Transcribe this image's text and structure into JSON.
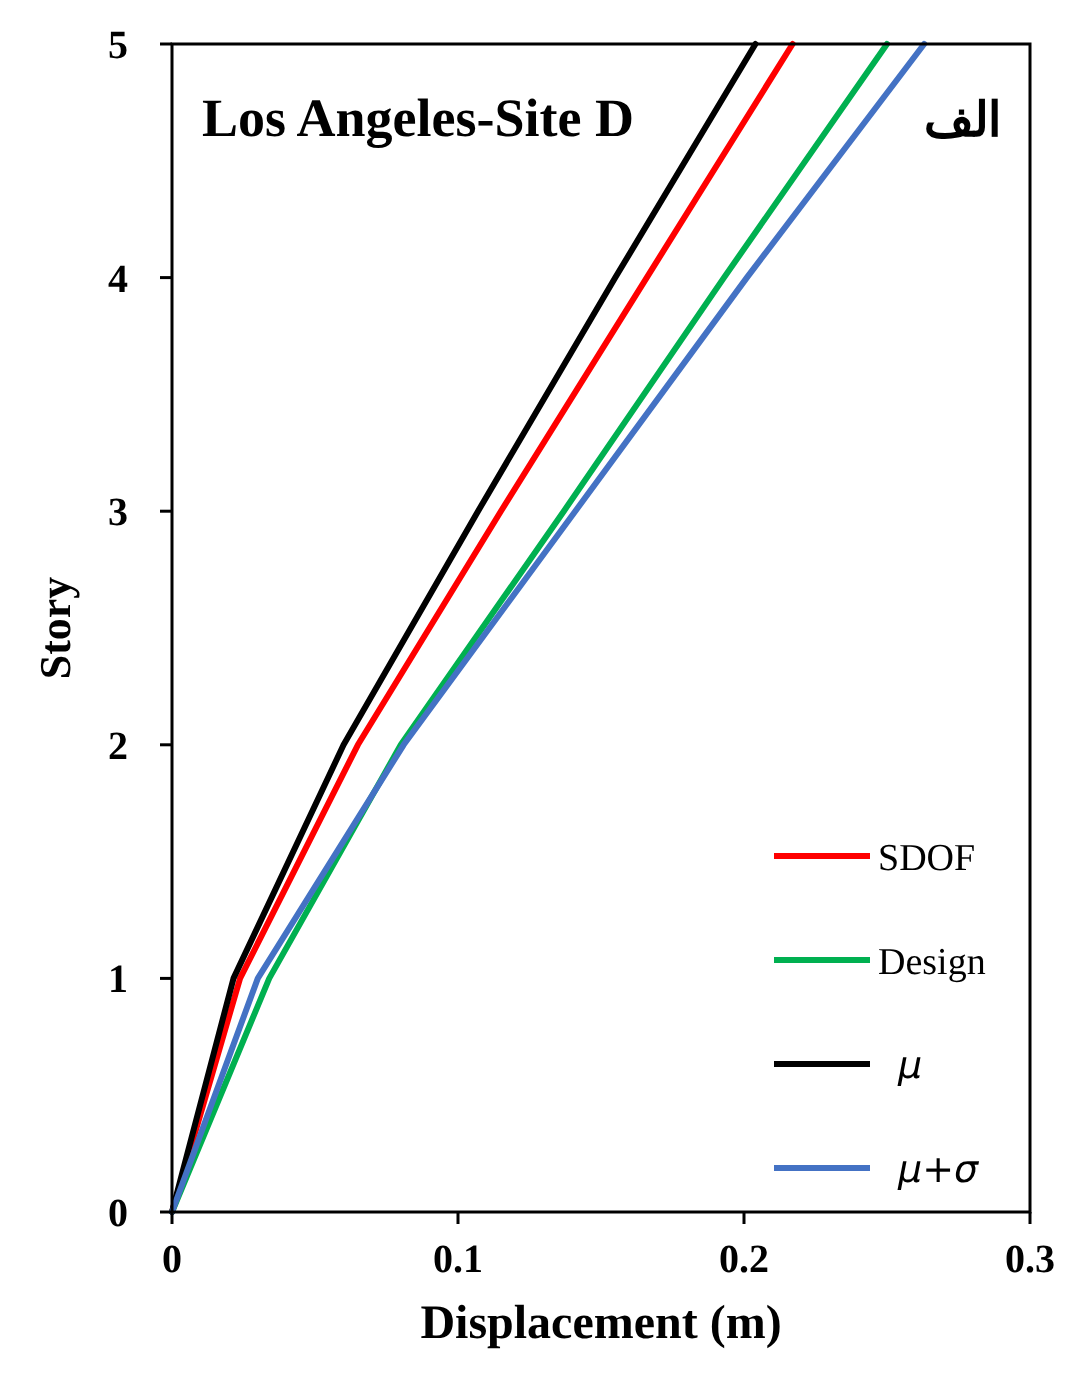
{
  "chart_data": {
    "type": "line",
    "title": "Los Angeles-Site D",
    "annotations": [
      "الف"
    ],
    "xlabel": "Displacement (m)",
    "ylabel": "Story",
    "xlim": [
      0,
      0.3
    ],
    "ylim": [
      0,
      5
    ],
    "xticks": [
      0,
      0.1,
      0.2,
      0.3
    ],
    "yticks": [
      0,
      1,
      2,
      3,
      4,
      5
    ],
    "grid": false,
    "legend": "bottom right",
    "line_style": "solid",
    "series": [
      {
        "name": "SDOF",
        "color": "#ff0000",
        "x": [
          0,
          0.0238,
          0.065,
          0.115,
          0.166,
          0.217
        ],
        "values": [
          0,
          1,
          2,
          3,
          4,
          5
        ]
      },
      {
        "name": "Design",
        "color": "#00b050",
        "x": [
          0,
          0.034,
          0.08,
          0.137,
          0.193,
          0.25
        ],
        "values": [
          0,
          1,
          2,
          3,
          4,
          5
        ]
      },
      {
        "name": "μ",
        "color": "#000000",
        "x": [
          0,
          0.0215,
          0.06,
          0.107,
          0.155,
          0.204
        ],
        "values": [
          0,
          1,
          2,
          3,
          4,
          5
        ]
      },
      {
        "name": "μ+σ",
        "color": "#4472c4",
        "x": [
          0,
          0.03,
          0.081,
          0.141,
          0.201,
          0.263
        ],
        "values": [
          0,
          1,
          2,
          3,
          4,
          5
        ]
      }
    ]
  }
}
